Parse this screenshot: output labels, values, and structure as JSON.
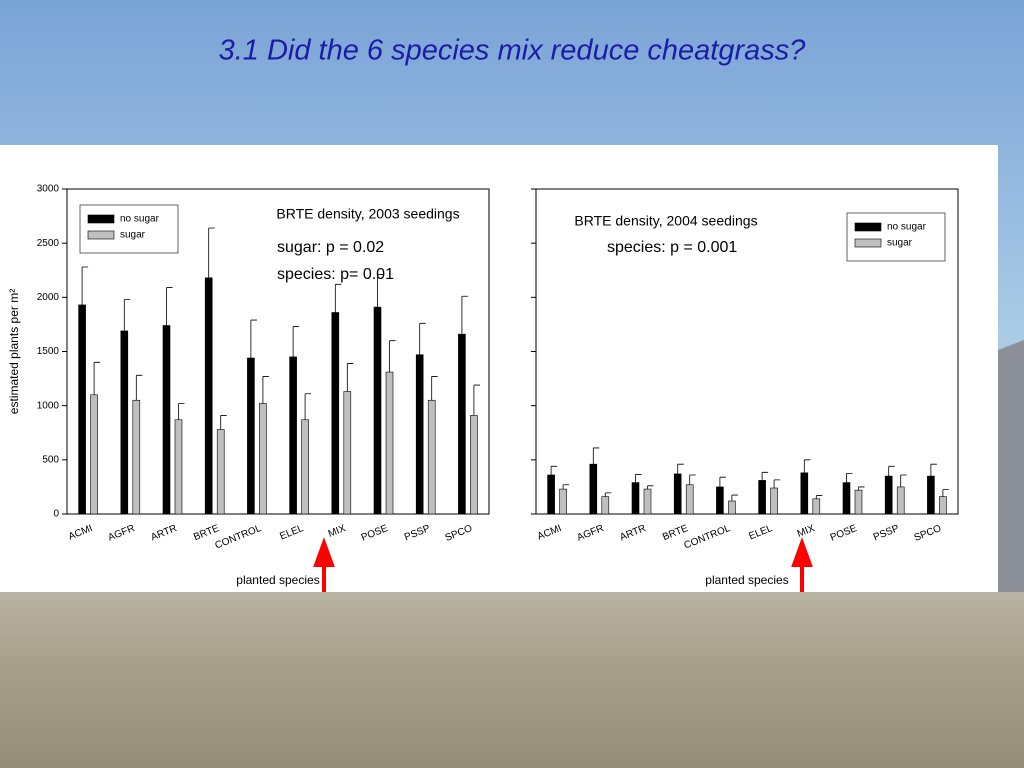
{
  "title": "3.1  Did the 6 species mix reduce cheatgrass?",
  "chart_data": [
    {
      "type": "bar",
      "annotations": [
        "BRTE density, 2003 seedings",
        "sugar: p = 0.02",
        "species: p= 0.01"
      ],
      "ylabel": "estimated plants per m²",
      "xlabel": "planted species",
      "categories": [
        "ACMI",
        "AGFR",
        "ARTR",
        "BRTE",
        "CONTROL",
        "ELEL",
        "MIX",
        "POSE",
        "PSSP",
        "SPCO"
      ],
      "series": [
        {
          "name": "no sugar",
          "color": "#000000",
          "values": [
            1930,
            1690,
            1740,
            2180,
            1440,
            1450,
            1860,
            1910,
            1470,
            1660
          ],
          "errors": [
            350,
            290,
            350,
            460,
            350,
            280,
            260,
            300,
            290,
            350
          ]
        },
        {
          "name": "sugar",
          "color": "#bfbfbf",
          "values": [
            1100,
            1050,
            870,
            780,
            1020,
            870,
            1130,
            1310,
            1050,
            910
          ],
          "errors": [
            300,
            230,
            150,
            130,
            250,
            240,
            260,
            290,
            220,
            280
          ]
        }
      ],
      "ylim": [
        0,
        3000
      ],
      "yticks": [
        0,
        500,
        1000,
        1500,
        2000,
        2500,
        3000
      ],
      "ytick_labels": true,
      "legend": "upper left"
    },
    {
      "type": "bar",
      "annotations": [
        "BRTE density, 2004 seedings",
        "species: p = 0.001"
      ],
      "xlabel": "planted species",
      "categories": [
        "ACMI",
        "AGFR",
        "ARTR",
        "BRTE",
        "CONTROL",
        "ELEL",
        "MIX",
        "POSE",
        "PSSP",
        "SPCO"
      ],
      "series": [
        {
          "name": "no sugar",
          "color": "#000000",
          "values": [
            360,
            460,
            290,
            370,
            250,
            310,
            380,
            290,
            350,
            350
          ],
          "errors": [
            80,
            150,
            75,
            90,
            90,
            75,
            120,
            85,
            90,
            110
          ]
        },
        {
          "name": "sugar",
          "color": "#bfbfbf",
          "values": [
            230,
            160,
            230,
            270,
            120,
            240,
            140,
            220,
            250,
            160
          ],
          "errors": [
            40,
            35,
            30,
            90,
            55,
            75,
            30,
            30,
            110,
            65
          ]
        }
      ],
      "ylim": [
        0,
        3000
      ],
      "yticks": [
        0,
        500,
        1000,
        1500,
        2000,
        2500,
        3000
      ],
      "ytick_labels": false,
      "legend": "upper right"
    }
  ]
}
